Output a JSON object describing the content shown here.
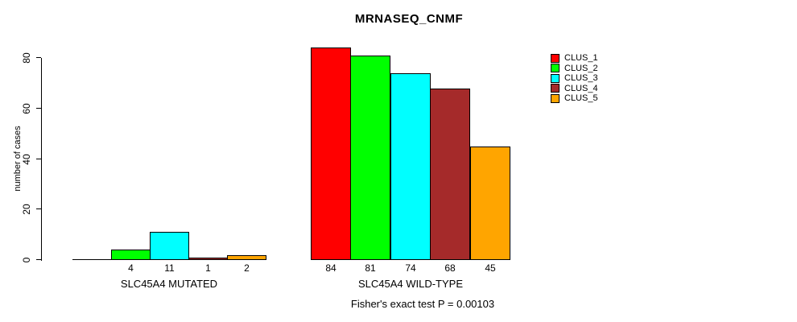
{
  "chart_data": {
    "type": "bar",
    "title": "MRNASEQ_CNMF",
    "ylabel": "number of cases",
    "ylim": [
      0,
      88
    ],
    "yticks": [
      0,
      20,
      40,
      60,
      80
    ],
    "grid": false,
    "legend_position": "right",
    "clusters": [
      {
        "name": "CLUS_1",
        "color": "#ff0000"
      },
      {
        "name": "CLUS_2",
        "color": "#00ff00"
      },
      {
        "name": "CLUS_3",
        "color": "#00ffff"
      },
      {
        "name": "CLUS_4",
        "color": "#a52a2a"
      },
      {
        "name": "CLUS_5",
        "color": "#ffa500"
      }
    ],
    "groups": [
      {
        "label": "SLC45A4 MUTATED",
        "values": [
          0,
          4,
          11,
          1,
          2
        ],
        "value_labels": [
          "",
          "4",
          "11",
          "1",
          "2"
        ]
      },
      {
        "label": "SLC45A4 WILD-TYPE",
        "values": [
          84,
          81,
          74,
          68,
          45
        ],
        "value_labels": [
          "84",
          "81",
          "74",
          "68",
          "45"
        ]
      }
    ],
    "annotation": "Fisher's exact test P = 0.00103"
  }
}
